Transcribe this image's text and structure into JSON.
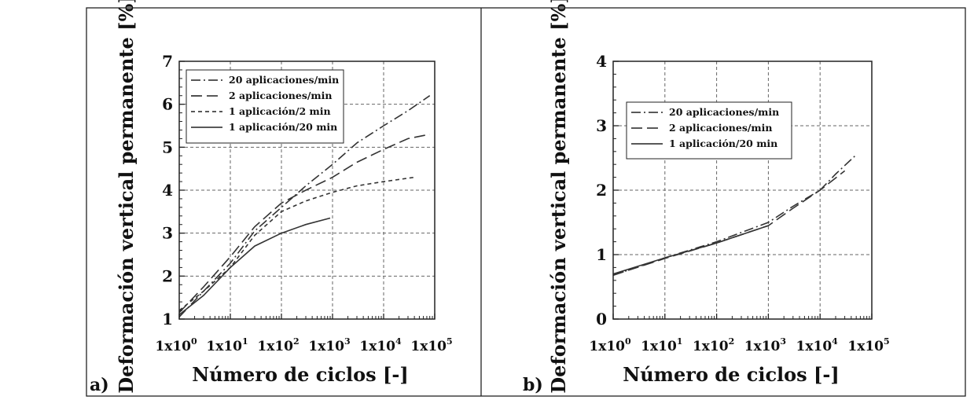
{
  "figure": {
    "panels": [
      {
        "label": "a)",
        "xlabel": "Número de ciclos [-]",
        "ylabel": "Deformación vertical permanente [%]"
      },
      {
        "label": "b)",
        "xlabel": "Número de ciclos [-]",
        "ylabel": "Deformación vertical permanente [%]"
      }
    ]
  },
  "chart_data": [
    {
      "type": "line",
      "x_scale": "log",
      "xlim": [
        1,
        100000
      ],
      "ylim": [
        1,
        7
      ],
      "x_ticks": [
        {
          "base": "1x10",
          "exp": "0"
        },
        {
          "base": "1x10",
          "exp": "1"
        },
        {
          "base": "1x10",
          "exp": "2"
        },
        {
          "base": "1x10",
          "exp": "3"
        },
        {
          "base": "1x10",
          "exp": "4"
        },
        {
          "base": "1x10",
          "exp": "5"
        }
      ],
      "y_ticks": [
        "1",
        "2",
        "3",
        "4",
        "5",
        "6",
        "7"
      ],
      "grid": true,
      "legend_position": "top-left",
      "xlabel": "Número de ciclos [-]",
      "ylabel": "Deformación vertical permanente [%]",
      "series": [
        {
          "name": "20 aplicaciones/min",
          "dash": "dash-dot",
          "x": [
            1,
            3,
            10,
            30,
            100,
            300,
            1000,
            3000,
            10000,
            30000,
            80000
          ],
          "y": [
            1.05,
            1.65,
            2.3,
            3.05,
            3.6,
            4.1,
            4.6,
            5.1,
            5.5,
            5.85,
            6.2
          ]
        },
        {
          "name": "2 aplicaciones/min",
          "dash": "long-dash",
          "x": [
            1,
            3,
            10,
            30,
            100,
            300,
            1000,
            3000,
            10000,
            30000,
            80000
          ],
          "y": [
            1.15,
            1.75,
            2.45,
            3.15,
            3.7,
            4.0,
            4.3,
            4.65,
            4.95,
            5.2,
            5.3
          ]
        },
        {
          "name": "1 aplicación/2 min",
          "dash": "short-dash",
          "x": [
            1,
            3,
            10,
            30,
            100,
            300,
            1000,
            3000,
            10000,
            40000
          ],
          "y": [
            1.2,
            1.65,
            2.2,
            2.95,
            3.5,
            3.75,
            3.95,
            4.1,
            4.2,
            4.3
          ]
        },
        {
          "name": "1 aplicación/20 min",
          "dash": "solid",
          "x": [
            1,
            3,
            10,
            30,
            100,
            300,
            900
          ],
          "y": [
            1.1,
            1.55,
            2.2,
            2.7,
            3.0,
            3.2,
            3.35
          ]
        }
      ]
    },
    {
      "type": "line",
      "x_scale": "log",
      "xlim": [
        1,
        100000
      ],
      "ylim": [
        0,
        4
      ],
      "x_ticks": [
        {
          "base": "1x10",
          "exp": "0"
        },
        {
          "base": "1x10",
          "exp": "1"
        },
        {
          "base": "1x10",
          "exp": "2"
        },
        {
          "base": "1x10",
          "exp": "3"
        },
        {
          "base": "1x10",
          "exp": "4"
        },
        {
          "base": "1x10",
          "exp": "5"
        }
      ],
      "y_ticks": [
        "0",
        "1",
        "2",
        "3",
        "4"
      ],
      "grid": true,
      "legend_position": "top-left",
      "xlabel": "Número de ciclos [-]",
      "ylabel": "Deformación vertical permanente [%]",
      "series": [
        {
          "name": "20 aplicaciones/min",
          "dash": "dash-dot",
          "x": [
            1,
            10,
            100,
            1000,
            3000,
            10000,
            20000,
            50000
          ],
          "y": [
            0.68,
            0.95,
            1.2,
            1.5,
            1.75,
            2.0,
            2.25,
            2.55
          ]
        },
        {
          "name": "2 aplicaciones/min",
          "dash": "long-dash",
          "x": [
            1,
            10,
            100,
            1000,
            3000,
            10000,
            30000
          ],
          "y": [
            0.68,
            0.94,
            1.18,
            1.45,
            1.72,
            2.0,
            2.3
          ]
        },
        {
          "name": "1 aplicación/20 min",
          "dash": "solid",
          "x": [
            1,
            10,
            100,
            1000
          ],
          "y": [
            0.7,
            0.95,
            1.18,
            1.45
          ]
        }
      ]
    }
  ]
}
